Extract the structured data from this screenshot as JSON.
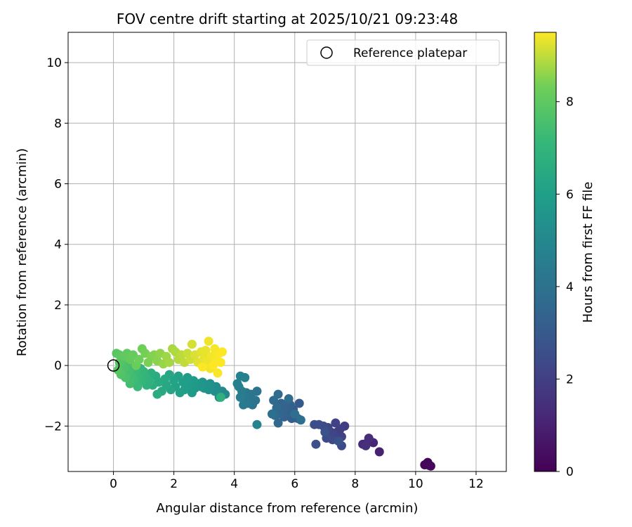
{
  "chart_data": {
    "type": "scatter",
    "title": "FOV centre drift starting at 2025/10/21 09:23:48",
    "xlabel": "Angular distance from reference (arcmin)",
    "ylabel": "Rotation from reference (arcmin)",
    "xlim": [
      -1.5,
      13.0
    ],
    "ylim": [
      -3.5,
      11.0
    ],
    "xticks": [
      0,
      2,
      4,
      6,
      8,
      10,
      12
    ],
    "yticks": [
      -2,
      0,
      2,
      4,
      6,
      8,
      10
    ],
    "xtick_labels": [
      "0",
      "2",
      "4",
      "6",
      "8",
      "10",
      "12"
    ],
    "ytick_labels": [
      "−2",
      "0",
      "2",
      "4",
      "6",
      "8",
      "10"
    ],
    "grid": true,
    "legend": {
      "position": "top-right",
      "label": "Reference platepar"
    },
    "reference_point": {
      "x": 0,
      "y": 0
    },
    "colorbar": {
      "label": "Hours from first FF file",
      "range": [
        0,
        9.5
      ],
      "ticks": [
        0,
        2,
        4,
        6,
        8
      ],
      "tick_labels": [
        "0",
        "2",
        "4",
        "6",
        "8"
      ],
      "colormap": "viridis"
    },
    "points": [
      [
        10.35,
        -3.25,
        0.0
      ],
      [
        10.45,
        -3.3,
        0.05
      ],
      [
        10.4,
        -3.2,
        0.1
      ],
      [
        10.3,
        -3.28,
        0.15
      ],
      [
        10.5,
        -3.32,
        0.2
      ],
      [
        8.8,
        -2.85,
        1.0
      ],
      [
        8.6,
        -2.55,
        1.1
      ],
      [
        8.4,
        -2.55,
        1.2
      ],
      [
        8.25,
        -2.6,
        1.3
      ],
      [
        8.45,
        -2.4,
        1.35
      ],
      [
        8.35,
        -2.65,
        1.45
      ],
      [
        7.65,
        -2.0,
        1.9
      ],
      [
        7.5,
        -2.1,
        1.95
      ],
      [
        7.4,
        -2.2,
        2.0
      ],
      [
        7.55,
        -2.35,
        2.05
      ],
      [
        7.35,
        -1.9,
        2.1
      ],
      [
        7.3,
        -2.3,
        2.15
      ],
      [
        7.2,
        -2.2,
        2.2
      ],
      [
        7.1,
        -2.05,
        2.25
      ],
      [
        7.25,
        -2.45,
        2.3
      ],
      [
        7.55,
        -2.65,
        2.35
      ],
      [
        7.05,
        -2.4,
        2.4
      ],
      [
        6.95,
        -2.0,
        2.45
      ],
      [
        6.8,
        -1.95,
        2.5
      ],
      [
        6.65,
        -1.95,
        2.55
      ],
      [
        6.7,
        -2.6,
        2.6
      ],
      [
        7.0,
        -2.2,
        2.65
      ],
      [
        7.45,
        -2.5,
        2.7
      ],
      [
        6.15,
        -1.25,
        3.0
      ],
      [
        6.1,
        -1.75,
        3.05
      ],
      [
        5.95,
        -1.45,
        3.1
      ],
      [
        5.9,
        -1.75,
        3.15
      ],
      [
        5.85,
        -1.3,
        3.2
      ],
      [
        5.75,
        -1.55,
        3.25
      ],
      [
        5.7,
        -1.35,
        3.3
      ],
      [
        5.65,
        -1.7,
        3.35
      ],
      [
        5.6,
        -1.5,
        3.4
      ],
      [
        5.55,
        -1.25,
        3.45
      ],
      [
        5.5,
        -1.6,
        3.5
      ],
      [
        5.45,
        -1.9,
        3.55
      ],
      [
        5.4,
        -1.4,
        3.6
      ],
      [
        5.35,
        -1.65,
        3.65
      ],
      [
        5.3,
        -1.15,
        3.7
      ],
      [
        5.45,
        -0.95,
        3.75
      ],
      [
        5.8,
        -1.1,
        3.8
      ],
      [
        6.0,
        -1.6,
        3.85
      ],
      [
        6.2,
        -1.8,
        3.9
      ],
      [
        5.25,
        -1.6,
        3.95
      ],
      [
        4.75,
        -0.85,
        4.0
      ],
      [
        4.7,
        -1.15,
        4.05
      ],
      [
        4.6,
        -1.3,
        4.1
      ],
      [
        4.55,
        -0.95,
        4.15
      ],
      [
        4.5,
        -1.05,
        4.2
      ],
      [
        4.45,
        -1.25,
        4.25
      ],
      [
        4.4,
        -0.9,
        4.3
      ],
      [
        4.35,
        -1.1,
        4.35
      ],
      [
        4.3,
        -1.3,
        4.4
      ],
      [
        4.25,
        -0.85,
        4.45
      ],
      [
        4.2,
        -1.05,
        4.5
      ],
      [
        4.15,
        -0.7,
        4.55
      ],
      [
        4.1,
        -0.6,
        4.6
      ],
      [
        4.2,
        -0.35,
        4.65
      ],
      [
        4.35,
        -0.4,
        4.7
      ],
      [
        4.75,
        -1.95,
        4.75
      ],
      [
        3.7,
        -0.95,
        5.0
      ],
      [
        3.6,
        -0.85,
        5.05
      ],
      [
        3.5,
        -1.05,
        5.1
      ],
      [
        3.45,
        -0.9,
        5.15
      ],
      [
        3.4,
        -0.7,
        5.2
      ],
      [
        3.35,
        -0.85,
        5.25
      ],
      [
        3.3,
        -0.75,
        5.3
      ],
      [
        3.2,
        -0.6,
        5.35
      ],
      [
        3.15,
        -0.8,
        5.4
      ],
      [
        3.1,
        -0.65,
        5.45
      ],
      [
        3.0,
        -0.75,
        5.5
      ],
      [
        2.95,
        -0.55,
        5.55
      ],
      [
        2.9,
        -0.7,
        5.6
      ],
      [
        2.8,
        -0.6,
        5.65
      ],
      [
        2.7,
        -0.75,
        5.7
      ],
      [
        2.65,
        -0.5,
        5.75
      ],
      [
        2.6,
        -0.9,
        5.8
      ],
      [
        2.5,
        -0.65,
        5.85
      ],
      [
        2.45,
        -0.4,
        5.9
      ],
      [
        2.35,
        -0.8,
        5.95
      ],
      [
        2.3,
        -0.55,
        6.0
      ],
      [
        2.2,
        -0.9,
        6.05
      ],
      [
        2.15,
        -0.35,
        6.1
      ],
      [
        2.05,
        -0.7,
        6.15
      ],
      [
        2.0,
        -0.5,
        6.2
      ],
      [
        1.9,
        -0.8,
        6.25
      ],
      [
        1.85,
        -0.3,
        6.3
      ],
      [
        1.75,
        -0.65,
        6.35
      ],
      [
        1.7,
        -0.45,
        6.4
      ],
      [
        1.6,
        -0.85,
        6.45
      ],
      [
        1.5,
        -0.55,
        6.5
      ],
      [
        1.45,
        -0.95,
        6.55
      ],
      [
        1.4,
        -0.35,
        6.6
      ],
      [
        1.3,
        -0.65,
        6.65
      ],
      [
        1.25,
        -0.25,
        6.7
      ],
      [
        3.0,
        0.05,
        6.75
      ],
      [
        3.55,
        -1.05,
        6.8
      ],
      [
        1.2,
        -0.5,
        6.85
      ],
      [
        1.1,
        -0.65,
        6.9
      ],
      [
        1.05,
        -0.35,
        6.95
      ],
      [
        1.0,
        -0.2,
        7.0
      ],
      [
        0.95,
        -0.5,
        7.05
      ],
      [
        0.9,
        -0.1,
        7.1
      ],
      [
        0.85,
        -0.4,
        7.15
      ],
      [
        0.8,
        -0.7,
        7.2
      ],
      [
        0.75,
        -0.15,
        7.25
      ],
      [
        0.7,
        -0.45,
        7.3
      ],
      [
        0.65,
        -0.05,
        7.35
      ],
      [
        0.6,
        -0.35,
        7.4
      ],
      [
        0.55,
        -0.6,
        7.45
      ],
      [
        0.5,
        -0.2,
        7.5
      ],
      [
        0.45,
        0.05,
        7.55
      ],
      [
        0.4,
        -0.4,
        7.6
      ],
      [
        0.35,
        -0.1,
        7.65
      ],
      [
        0.3,
        0.15,
        7.7
      ],
      [
        0.25,
        -0.3,
        7.75
      ],
      [
        0.2,
        0.1,
        7.8
      ],
      [
        0.15,
        -0.15,
        7.85
      ],
      [
        0.1,
        0.4,
        7.9
      ],
      [
        0.2,
        0.35,
        7.95
      ],
      [
        0.35,
        0.3,
        8.0
      ],
      [
        0.45,
        0.4,
        8.05
      ],
      [
        0.55,
        0.2,
        8.1
      ],
      [
        0.65,
        0.35,
        8.15
      ],
      [
        0.75,
        0.0,
        8.2
      ],
      [
        0.85,
        0.2,
        8.25
      ],
      [
        0.95,
        0.55,
        8.3
      ],
      [
        1.05,
        0.4,
        8.35
      ],
      [
        1.15,
        0.1,
        8.4
      ],
      [
        1.25,
        0.3,
        8.45
      ],
      [
        1.35,
        0.35,
        8.5
      ],
      [
        1.45,
        0.15,
        8.55
      ],
      [
        1.55,
        0.4,
        8.6
      ],
      [
        1.65,
        0.05,
        8.65
      ],
      [
        1.75,
        0.3,
        8.7
      ],
      [
        1.85,
        0.1,
        8.75
      ],
      [
        1.95,
        0.55,
        8.8
      ],
      [
        2.05,
        0.45,
        8.85
      ],
      [
        2.15,
        0.2,
        8.9
      ],
      [
        2.25,
        0.35,
        8.95
      ],
      [
        2.35,
        0.1,
        9.0
      ],
      [
        2.45,
        0.4,
        9.05
      ],
      [
        2.55,
        0.2,
        9.1
      ],
      [
        2.6,
        0.7,
        9.15
      ],
      [
        2.7,
        0.35,
        9.2
      ],
      [
        2.8,
        0.1,
        9.25
      ],
      [
        2.9,
        0.45,
        9.28
      ],
      [
        3.0,
        0.25,
        9.3
      ],
      [
        3.05,
        0.5,
        9.33
      ],
      [
        3.1,
        0.15,
        9.36
      ],
      [
        3.15,
        0.8,
        9.38
      ],
      [
        3.2,
        -0.1,
        9.4
      ],
      [
        3.25,
        0.3,
        9.42
      ],
      [
        3.35,
        0.55,
        9.44
      ],
      [
        3.4,
        0.2,
        9.46
      ],
      [
        3.45,
        -0.25,
        9.47
      ],
      [
        3.5,
        0.4,
        9.48
      ],
      [
        3.6,
        0.45,
        9.49
      ],
      [
        3.3,
        0.0,
        9.5
      ],
      [
        2.95,
        -0.05,
        9.5
      ],
      [
        3.55,
        0.1,
        9.5
      ]
    ]
  }
}
